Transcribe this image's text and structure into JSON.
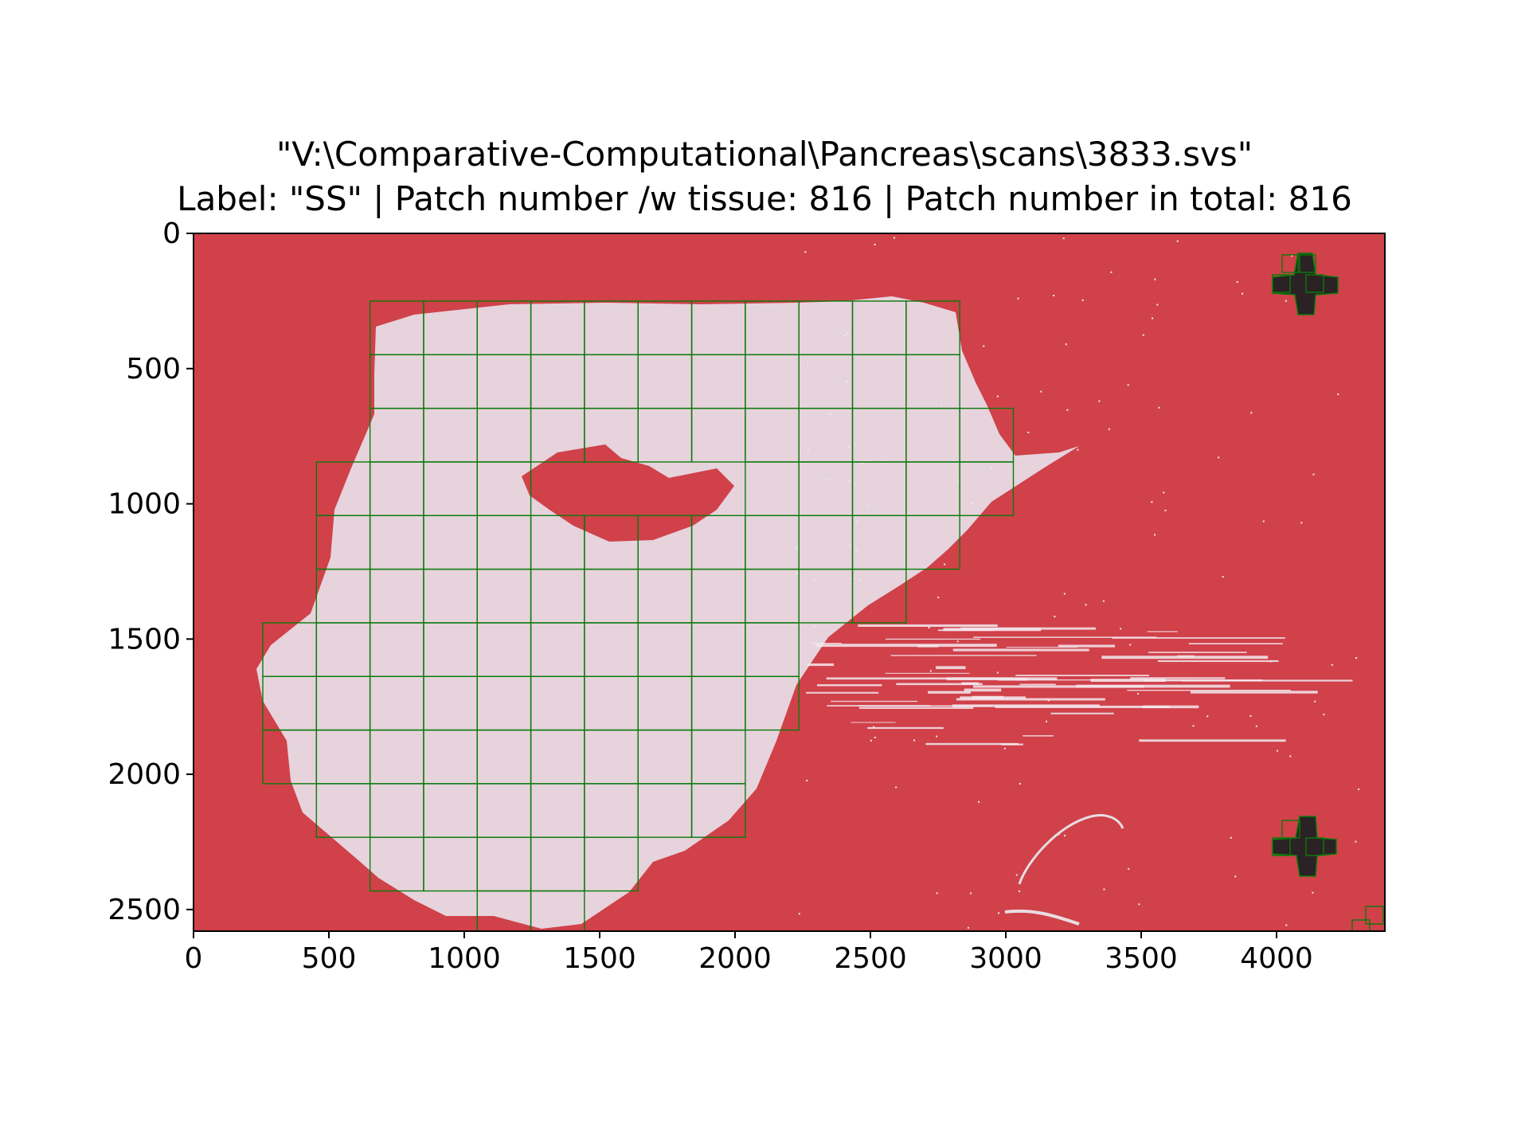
{
  "figure": {
    "title_line_1": "\"V:\\Comparative-Computational\\Pancreas\\scans\\3833.svs\"",
    "title_line_2": "Label: \"SS\" | Patch number /w tissue: 816 | Patch number in total: 816",
    "background_color": "#d0414a",
    "tissue_color": "#e6d3dc",
    "patch_outline_color": "#0a7a0a",
    "patch_size": 55
  },
  "axes": {
    "x_ticks": [
      0,
      500,
      1000,
      1500,
      2000,
      2500,
      3000,
      3500,
      4000
    ],
    "y_ticks": [
      0,
      500,
      1000,
      1500,
      2000,
      2500
    ],
    "xlim": [
      0,
      4400
    ],
    "ylim": [
      2580,
      0
    ]
  },
  "chart_data": {
    "type": "heatmap",
    "title": "\"V:\\Comparative-Computational\\Pancreas\\scans\\3833.svs\"",
    "subtitle": "Label: \"SS\" | Patch number /w tissue: 816 | Patch number in total: 816",
    "xlim": [
      0,
      4400
    ],
    "ylim": [
      2580,
      0
    ],
    "x_ticks": [
      0,
      500,
      1000,
      1500,
      2000,
      2500,
      3000,
      3500,
      4000
    ],
    "y_ticks": [
      0,
      500,
      1000,
      1500,
      2000,
      2500
    ],
    "label": "SS",
    "patches_with_tissue": 816,
    "patches_total": 816
  }
}
